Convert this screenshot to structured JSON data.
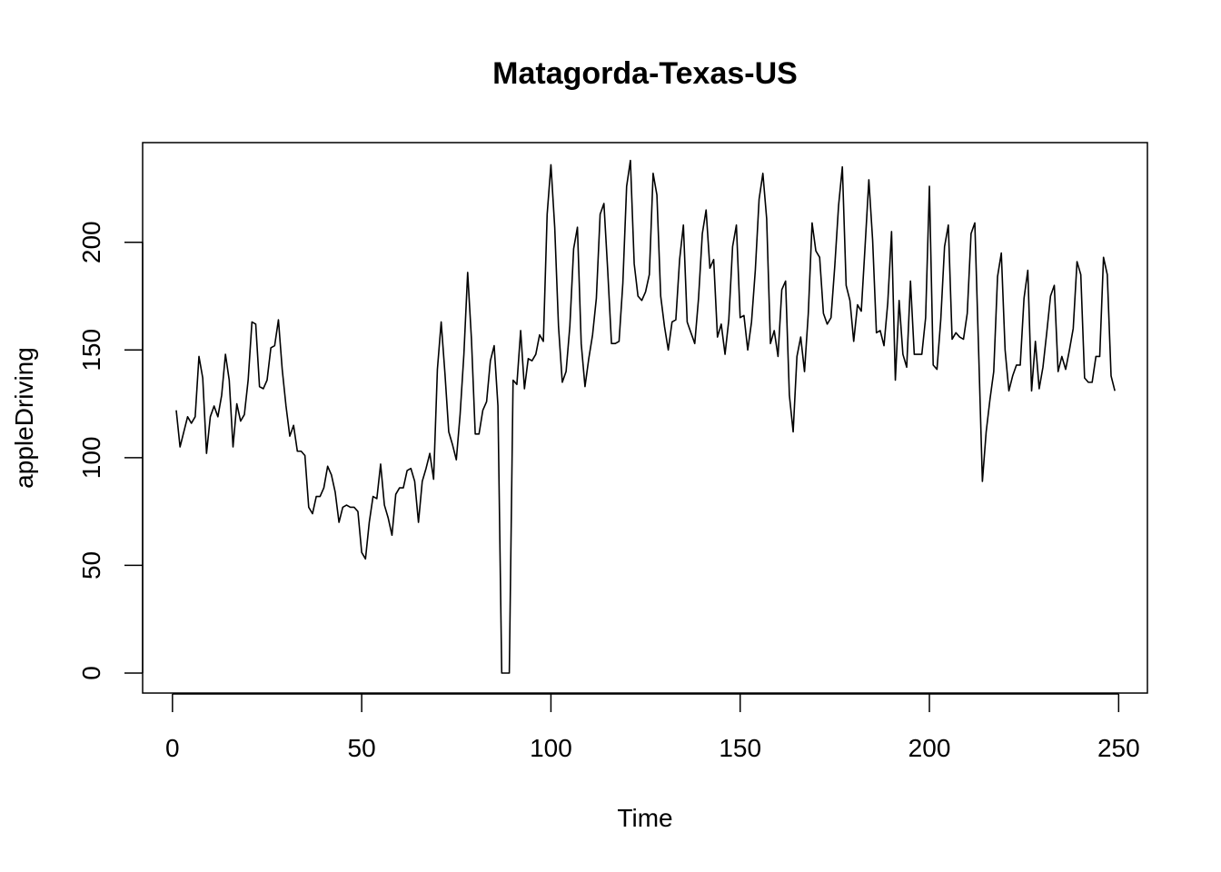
{
  "chart_data": {
    "type": "line",
    "title": "Matagorda-Texas-US",
    "xlabel": "Time",
    "ylabel": "appleDriving",
    "xlim": [
      1,
      248
    ],
    "ylim": [
      0,
      237
    ],
    "xticks": [
      0,
      50,
      100,
      150,
      200,
      250
    ],
    "yticks": [
      0,
      50,
      100,
      150,
      200
    ],
    "grid": false,
    "line_color": "#000000",
    "series": [
      {
        "values": [
          122,
          105,
          112,
          119,
          116,
          119,
          147,
          137,
          102,
          119,
          124,
          119,
          129,
          148,
          136,
          105,
          125,
          117,
          120,
          136,
          163,
          162,
          133,
          132,
          136,
          151,
          152,
          164,
          141,
          124,
          110,
          115,
          103,
          103,
          101,
          77,
          74,
          82,
          82,
          86,
          96,
          92,
          84,
          70,
          77,
          78,
          77,
          77,
          75,
          56,
          53,
          70,
          82,
          81,
          97,
          78,
          72,
          64,
          83,
          86,
          86,
          94,
          95,
          89,
          70,
          89,
          95,
          102,
          90,
          141,
          163,
          139,
          112,
          106,
          99,
          120,
          148,
          186,
          155,
          111,
          111,
          122,
          126,
          145,
          152,
          124,
          0,
          0,
          0,
          136,
          134,
          159,
          132,
          146,
          145,
          148,
          157,
          154,
          213,
          236,
          207,
          161,
          135,
          140,
          161,
          197,
          207,
          153,
          133,
          146,
          157,
          174,
          213,
          218,
          187,
          153,
          153,
          154,
          181,
          226,
          238,
          190,
          175,
          173,
          177,
          185,
          232,
          222,
          175,
          161,
          150,
          163,
          164,
          192,
          208,
          163,
          158,
          153,
          174,
          204,
          215,
          188,
          192,
          156,
          162,
          148,
          164,
          198,
          208,
          165,
          166,
          150,
          163,
          187,
          220,
          232,
          211,
          153,
          159,
          147,
          178,
          182,
          129,
          112,
          147,
          156,
          140,
          167,
          209,
          196,
          193,
          167,
          162,
          165,
          189,
          217,
          235,
          180,
          173,
          154,
          171,
          168,
          198,
          229,
          201,
          158,
          159,
          152,
          172,
          205,
          136,
          173,
          148,
          142,
          182,
          148,
          148,
          148,
          165,
          226,
          143,
          141,
          164,
          198,
          208,
          155,
          158,
          156,
          155,
          167,
          204,
          209,
          150,
          89,
          112,
          127,
          140,
          184,
          195,
          150,
          131,
          138,
          143,
          143,
          174,
          187,
          131,
          154,
          132,
          142,
          158,
          175,
          180,
          140,
          147,
          141,
          150,
          160,
          191,
          185,
          137,
          135,
          135,
          147,
          147,
          193,
          185,
          138,
          131
        ]
      }
    ]
  }
}
